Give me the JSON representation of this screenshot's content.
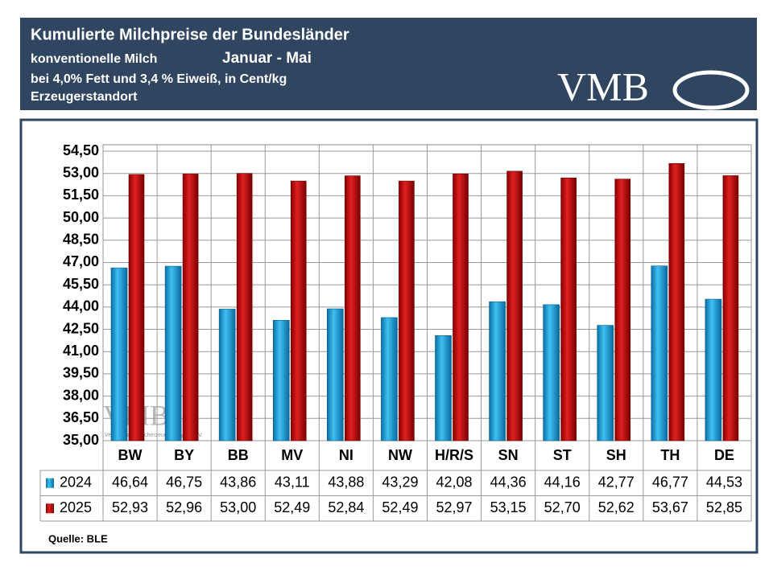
{
  "header": {
    "title": "Kumulierte Milchpreise der Bundesländer",
    "subtitle": "konventionelle  Milch",
    "period": "Januar - Mai",
    "note": "bei 4,0% Fett und 3,4 % Eiweiß, in Cent/kg",
    "note2": "Erzeugerstandort",
    "logo": "VMB"
  },
  "chart_data": {
    "type": "bar",
    "categories": [
      "BW",
      "BY",
      "BB",
      "MV",
      "NI",
      "NW",
      "H/R/S",
      "SN",
      "ST",
      "SH",
      "TH",
      "DE"
    ],
    "series": [
      {
        "name": "2024",
        "color": "#1a9ad6",
        "values": [
          46.64,
          46.75,
          43.86,
          43.11,
          43.88,
          43.29,
          42.08,
          44.36,
          44.16,
          42.77,
          46.77,
          44.53
        ],
        "value_labels": [
          "46,64",
          "46,75",
          "43,86",
          "43,11",
          "43,88",
          "43,29",
          "42,08",
          "44,36",
          "44,16",
          "42,77",
          "46,77",
          "44,53"
        ]
      },
      {
        "name": "2025",
        "color": "#c00000",
        "values": [
          52.93,
          52.96,
          53.0,
          52.49,
          52.84,
          52.49,
          52.97,
          53.15,
          52.7,
          52.62,
          53.67,
          52.85
        ],
        "value_labels": [
          "52,93",
          "52,96",
          "53,00",
          "52,49",
          "52,84",
          "52,49",
          "52,97",
          "53,15",
          "52,70",
          "52,62",
          "53,67",
          "52,85"
        ]
      }
    ],
    "ylim": [
      35,
      54.5
    ],
    "yticks": [
      {
        "value": 35,
        "label": "35,00"
      },
      {
        "value": 36.5,
        "label": "36,50"
      },
      {
        "value": 38,
        "label": "38,00"
      },
      {
        "value": 39.5,
        "label": "39,50"
      },
      {
        "value": 41,
        "label": "41,00"
      },
      {
        "value": 42.5,
        "label": "42,50"
      },
      {
        "value": 44,
        "label": "44,00"
      },
      {
        "value": 45.5,
        "label": "45,50"
      },
      {
        "value": 47,
        "label": "47,00"
      },
      {
        "value": 48.5,
        "label": "48,50"
      },
      {
        "value": 50,
        "label": "50,00"
      },
      {
        "value": 51.5,
        "label": "51,50"
      },
      {
        "value": 53,
        "label": "53,00"
      },
      {
        "value": 54.5,
        "label": "54,50"
      }
    ],
    "grid": true,
    "source": "Quelle: BLE",
    "watermark": "VMB",
    "watermark_sub": "Verband der Milcherzeuger Bayern e.V."
  }
}
